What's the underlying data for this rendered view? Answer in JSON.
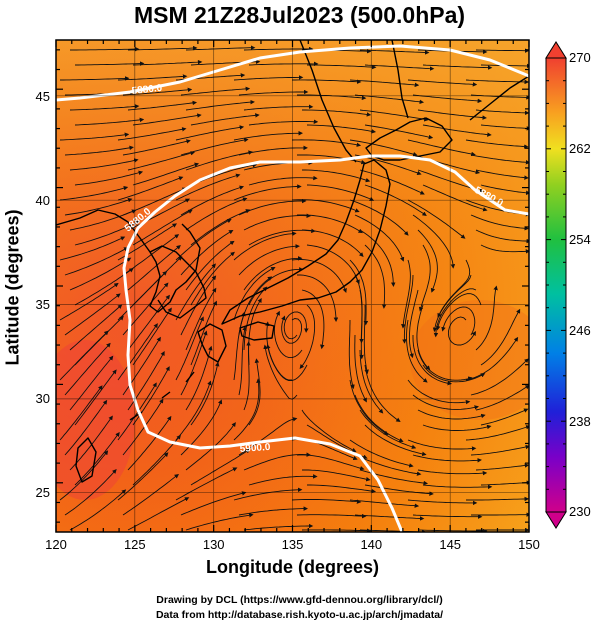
{
  "title": "MSM 21Z28Jul2023 (500.0hPa)",
  "xlabel": "Longitude (degrees)",
  "ylabel": "Latitude  (degrees)",
  "x_ticks": [
    "120",
    "125",
    "130",
    "135",
    "140",
    "145",
    "150"
  ],
  "y_ticks": [
    "25",
    "30",
    "35",
    "40",
    "45"
  ],
  "colorbar_ticks": [
    "270",
    "262",
    "254",
    "246",
    "238",
    "230"
  ],
  "contour_labels": [
    "5880.0",
    "5880.0",
    "5880.0",
    "5900.0"
  ],
  "credits": {
    "line1": "Drawing by DCL (https://www.gfd-dennou.org/library/dcl/)",
    "line2": "Data from http://database.rish.kyoto-u.ac.jp/arch/jmadata/"
  },
  "chart_data": {
    "type": "heatmap",
    "variable": "temperature with wind streamlines",
    "xlim": [
      120,
      150
    ],
    "ylim": [
      22.5,
      47.5
    ],
    "colorbar_range": [
      230,
      270
    ],
    "field_range_estimate": [
      264,
      270
    ],
    "contours": [
      {
        "value": 5880.0,
        "approx_path_lonlat": [
          [
            120,
            45.2
          ],
          [
            125,
            45.5
          ],
          [
            130,
            46.5
          ],
          [
            135,
            47.2
          ],
          [
            140,
            47.0
          ],
          [
            145,
            46.5
          ],
          [
            149,
            45.0
          ]
        ]
      },
      {
        "value": 5880.0,
        "approx_path_lonlat": [
          [
            150,
            39.6
          ],
          [
            147,
            40.5
          ],
          [
            143,
            41.7
          ],
          [
            140,
            42.3
          ],
          [
            138,
            42.4
          ],
          [
            134,
            42.0
          ],
          [
            130,
            41.8
          ],
          [
            127,
            40.8
          ],
          [
            125,
            39.2
          ],
          [
            124,
            37.5
          ],
          [
            124,
            35.0
          ],
          [
            124.5,
            31.5
          ],
          [
            125,
            28.8
          ],
          [
            127,
            27.0
          ],
          [
            130,
            26.2
          ],
          [
            133,
            26.8
          ],
          [
            135,
            27.5
          ],
          [
            137,
            27.4
          ],
          [
            139,
            25.5
          ],
          [
            141,
            23.4
          ]
        ]
      }
    ],
    "features": [
      "coastlines",
      "cyclonic circulation near 145E 32N",
      "anticyclonic circulation near 138E 37N"
    ]
  }
}
